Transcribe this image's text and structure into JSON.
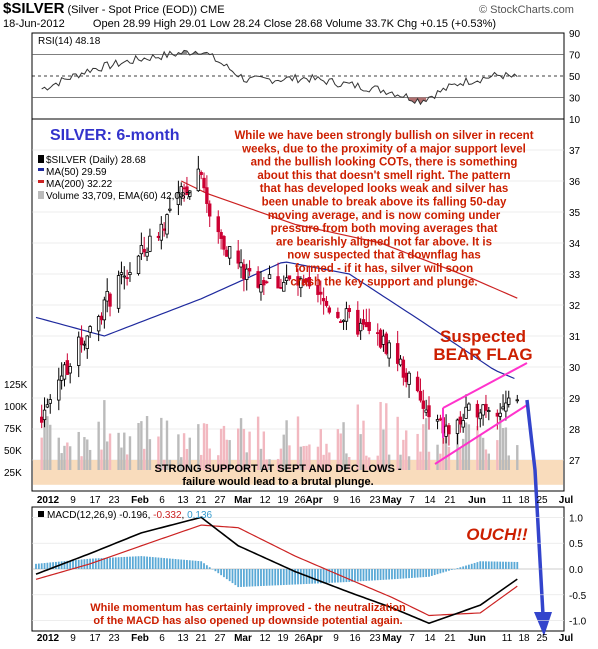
{
  "header": {
    "symbol": "$SILVER",
    "name": "(Silver - Spot Price (EOD)) CME",
    "date": "18-Jun-2012",
    "open_label": "Open",
    "open": "28.99",
    "high_label": "High",
    "high": "29.01",
    "low_label": "Low",
    "low": "28.24",
    "close_label": "Close",
    "close": "28.68",
    "volume_label": "Volume",
    "volume": "33.7K",
    "chg_label": "Chg",
    "chg": "+0.15 (+0.53%)",
    "source": "© StockCharts.com"
  },
  "colors": {
    "up_candle": "#000000",
    "down_candle": "#cc0033",
    "ma50": "#1f2a9e",
    "ma200": "#cc2222",
    "annotation": "#cc1f00",
    "flag": "#ff33cc",
    "arrow": "#3344cc",
    "support_band": "#f9dcbc",
    "volume_bar": "#bbbbbb",
    "histogram": "#5aa9d6"
  },
  "chart_data": [
    {
      "type": "line",
      "panel": "rsi",
      "legend": "RSI(14) 48.18",
      "ylim": [
        10,
        90
      ],
      "yticks": [
        10,
        30,
        50,
        70,
        90
      ],
      "reference_lines": [
        30,
        50,
        70
      ],
      "x": [
        "2012-01-03",
        "2012-01-20",
        "2012-02-07",
        "2012-02-28",
        "2012-03-15",
        "2012-04-05",
        "2012-04-20",
        "2012-05-04",
        "2012-05-15",
        "2012-05-29",
        "2012-06-12",
        "2012-06-18"
      ],
      "series": [
        {
          "name": "RSI(14)",
          "values": [
            38,
            56,
            66,
            74,
            46,
            48,
            42,
            36,
            27,
            44,
            51,
            48
          ]
        }
      ]
    },
    {
      "type": "candlestick",
      "panel": "price",
      "title": "SILVER: 6-month",
      "legend": [
        "$SILVER (Daily) 28.68",
        "MA(50) 29.59",
        "MA(200) 32.22",
        "Volume 33,709, EMA(60) 42,087"
      ],
      "ylim": [
        26,
        38
      ],
      "yticks": [
        27,
        28,
        29,
        30,
        31,
        32,
        33,
        34,
        35,
        36,
        37
      ],
      "volume_ticks": [
        "125K",
        "100K",
        "75K",
        "50K",
        "25K"
      ],
      "x_labels": [
        "2012",
        "9",
        "17",
        "23",
        "Feb",
        "6",
        "13",
        "21",
        "27",
        "Mar",
        "12",
        "19",
        "26",
        "Apr",
        "9",
        "16",
        "23",
        "May",
        "7",
        "14",
        "21",
        "Jun",
        "11",
        "18",
        "25",
        "Jul"
      ],
      "anchors": {
        "x": [
          "2012-01-01",
          "2012-01-10",
          "2012-01-25",
          "2012-02-10",
          "2012-02-28",
          "2012-03-02",
          "2012-03-15",
          "2012-04-01",
          "2012-04-20",
          "2012-05-05",
          "2012-05-18",
          "2012-05-25",
          "2012-06-05",
          "2012-06-18"
        ],
        "close": [
          27.8,
          29.8,
          32.0,
          34.0,
          36.5,
          34.7,
          32.9,
          32.7,
          31.5,
          30.6,
          28.3,
          27.9,
          28.8,
          28.68
        ]
      },
      "ma50_anchors": {
        "x": [
          "2012-01-01",
          "2012-01-25",
          "2012-02-28",
          "2012-03-28",
          "2012-04-20",
          "2012-05-15",
          "2012-06-10",
          "2012-06-18"
        ],
        "values": [
          31.6,
          31.0,
          32.2,
          33.4,
          33.0,
          31.5,
          29.9,
          29.59
        ]
      },
      "ma200_anchors": {
        "x": [
          "2012-02-21",
          "2012-03-01",
          "2012-04-01",
          "2012-05-01",
          "2012-06-01",
          "2012-06-18"
        ],
        "values": [
          36.0,
          35.6,
          34.6,
          34.0,
          32.9,
          32.22
        ]
      },
      "support_zone": [
        26.2,
        27.0
      ],
      "annotations": [
        "While we have been strongly bullish on silver in recent weeks, due to the proximity of a major support level and the bullish looking COTs, there is something about this that doesn't smell right. The pattern that has developed looks weak and silver has been unable to break above its falling 50-day moving average, and is now coming under pressure from both moving averages that are bearishly aligned not far above. It is now suspected that a downflag has formed - if it has, silver will soon crash the key support and plunge.",
        "Suspected",
        "BEAR FLAG",
        "STRONG SUPPORT AT SEPT AND DEC LOWS -",
        "failure would lead to a brutal plunge."
      ]
    },
    {
      "type": "line",
      "panel": "macd",
      "legend_prefix": "MACD(12,26,9)",
      "legend_macd": "-0.196",
      "legend_signal": "-0.332",
      "legend_hist": "0.136",
      "ylim": [
        -1.2,
        1.2
      ],
      "yticks": [
        "1.0",
        "0.5",
        "0.0",
        "-0.5",
        "-1.0"
      ],
      "x": [
        "2012-01-01",
        "2012-01-20",
        "2012-02-07",
        "2012-02-28",
        "2012-03-12",
        "2012-04-01",
        "2012-04-20",
        "2012-05-05",
        "2012-05-18",
        "2012-06-05",
        "2012-06-18"
      ],
      "series": [
        {
          "name": "MACD",
          "values": [
            -0.1,
            0.3,
            0.7,
            1.0,
            0.45,
            -0.05,
            -0.45,
            -0.75,
            -1.05,
            -0.7,
            -0.196
          ]
        },
        {
          "name": "Signal",
          "values": [
            -0.2,
            0.1,
            0.45,
            0.85,
            0.8,
            0.25,
            -0.2,
            -0.55,
            -0.9,
            -0.85,
            -0.332
          ]
        }
      ],
      "annotations": [
        "OUCH!!",
        "While momentum has certainly improved - the neutralization",
        "of the MACD has also opened up downside potential again."
      ]
    }
  ]
}
